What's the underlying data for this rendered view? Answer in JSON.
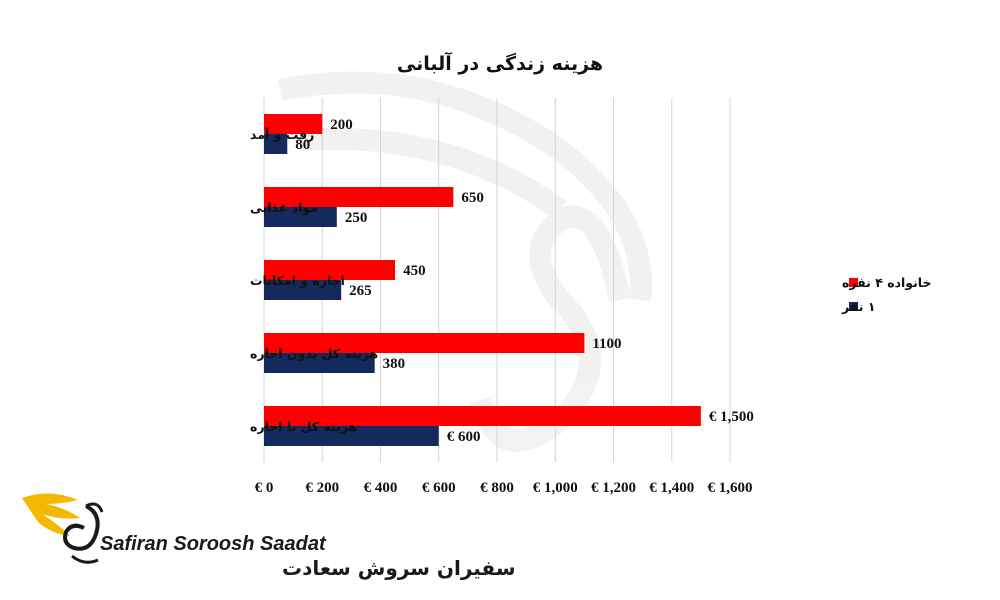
{
  "chart_data": {
    "type": "bar",
    "orientation": "horizontal",
    "title": "هزینه زندگی در آلبانی",
    "categories": [
      "رفت و آمد",
      "مواد غذایی",
      "اجاره و امکانات",
      "هزینه کل بدون اجاره",
      "هزینه کل با اجاره"
    ],
    "series": [
      {
        "name": "خانواده ۴ نفره",
        "color": "#ff0000",
        "values": [
          200,
          650,
          450,
          1100,
          1500
        ],
        "labels": [
          "200",
          "650",
          "450",
          "1100",
          "€ 1,500"
        ]
      },
      {
        "name": "۱ نفر",
        "color": "#142a5c",
        "values": [
          80,
          250,
          265,
          380,
          600
        ],
        "labels": [
          "80",
          "250",
          "265",
          "380",
          "€ 600"
        ]
      }
    ],
    "xlim": [
      0,
      1600
    ],
    "x_ticks": [
      0,
      200,
      400,
      600,
      800,
      1000,
      1200,
      1400,
      1600
    ],
    "x_tick_labels": [
      "€ 0",
      "€ 200",
      "€ 400",
      "€ 600",
      "€ 800",
      "€ 1,000",
      "€ 1,200",
      "€ 1,400",
      "€ 1,600"
    ],
    "grid": "vertical",
    "legend_position": "right",
    "xlabel": "",
    "ylabel": ""
  },
  "watermark": {
    "brand_latin": "Safiran Soroosh Saadat",
    "brand_persian": "سفیران سروش سعادت",
    "accent_color": "#f5b800"
  }
}
